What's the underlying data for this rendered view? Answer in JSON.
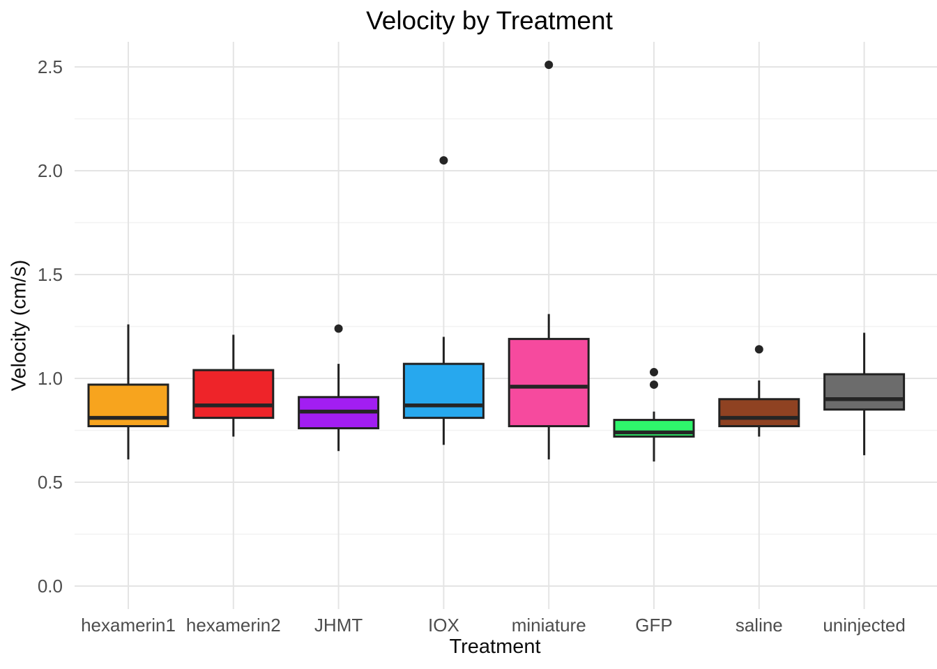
{
  "figure": {
    "title": "Velocity by Treatment",
    "x_axis_label": "Treatment",
    "y_axis_label": "Velocity (cm/s)"
  },
  "chart_data": {
    "type": "boxplot",
    "title": "Velocity by Treatment",
    "xlabel": "Treatment",
    "ylabel": "Velocity (cm/s)",
    "ylim": [
      -0.11,
      2.62
    ],
    "y_major_ticks": [
      0.0,
      0.5,
      1.0,
      1.5,
      2.0,
      2.5
    ],
    "y_tick_labels": [
      "0.0",
      "0.5",
      "1.0",
      "1.5",
      "2.0",
      "2.5"
    ],
    "y_minor_ticks": [
      0.25,
      0.75,
      1.25,
      1.75,
      2.25
    ],
    "grid": "horizontal major+minor, vertical major at category centers, no axis lines, no tick marks",
    "legend": "none",
    "categories": [
      "hexamerin1",
      "hexamerin2",
      "JHMT",
      "IOX",
      "miniature",
      "GFP",
      "saline",
      "uninjected"
    ],
    "series": [
      {
        "name": "hexamerin1",
        "color": "#F7A41E",
        "whisker_low": 0.61,
        "q1": 0.77,
        "median": 0.81,
        "q3": 0.97,
        "whisker_high": 1.26,
        "outliers": []
      },
      {
        "name": "hexamerin2",
        "color": "#EE2429",
        "whisker_low": 0.72,
        "q1": 0.81,
        "median": 0.87,
        "q3": 1.04,
        "whisker_high": 1.21,
        "outliers": []
      },
      {
        "name": "JHMT",
        "color": "#A21EF2",
        "whisker_low": 0.65,
        "q1": 0.76,
        "median": 0.84,
        "q3": 0.91,
        "whisker_high": 1.07,
        "outliers": [
          1.24
        ]
      },
      {
        "name": "IOX",
        "color": "#27A8EE",
        "whisker_low": 0.68,
        "q1": 0.81,
        "median": 0.87,
        "q3": 1.07,
        "whisker_high": 1.2,
        "outliers": [
          2.05
        ]
      },
      {
        "name": "miniature",
        "color": "#F64A9E",
        "whisker_low": 0.61,
        "q1": 0.77,
        "median": 0.96,
        "q3": 1.19,
        "whisker_high": 1.31,
        "outliers": [
          2.51
        ]
      },
      {
        "name": "GFP",
        "color": "#2FF56C",
        "whisker_low": 0.6,
        "q1": 0.72,
        "median": 0.74,
        "q3": 0.8,
        "whisker_high": 0.84,
        "outliers": [
          1.03,
          0.97
        ]
      },
      {
        "name": "saline",
        "color": "#8F4222",
        "whisker_low": 0.72,
        "q1": 0.77,
        "median": 0.81,
        "q3": 0.9,
        "whisker_high": 0.99,
        "outliers": [
          1.14
        ]
      },
      {
        "name": "uninjected",
        "color": "#6C6C6C",
        "whisker_low": 0.63,
        "q1": 0.85,
        "median": 0.9,
        "q3": 1.02,
        "whisker_high": 1.22,
        "outliers": []
      }
    ],
    "style_colors": {
      "background": "#FFFFFF",
      "grid_major": "#E4E4E4",
      "grid_minor": "#F2F2F2",
      "box_border": "#212121",
      "median_line": "#252525",
      "outlier_dot": "#252525",
      "tick_label": "#4D4D4D",
      "axis_title": "#0D0D0D",
      "title": "#000000"
    }
  }
}
